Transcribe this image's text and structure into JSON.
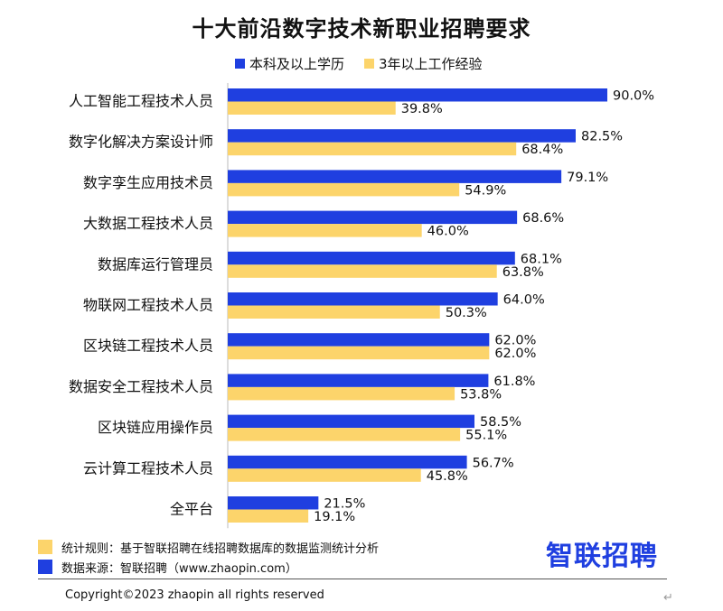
{
  "chart_data": {
    "type": "bar",
    "orientation": "horizontal",
    "title": "十大前沿数字技术新职业招聘要求",
    "categories": [
      "人工智能工程技术人员",
      "数字化解决方案设计师",
      "数字孪生应用技术员",
      "大数据工程技术人员",
      "数据库运行管理员",
      "物联网工程技术人员",
      "区块链工程技术人员",
      "数据安全工程技术人员",
      "区块链应用操作员",
      "云计算工程技术人员",
      "全平台"
    ],
    "series": [
      {
        "name": "本科及以上学历",
        "color": "#1f3fe0",
        "values": [
          90.0,
          82.5,
          79.1,
          68.6,
          68.1,
          64.0,
          62.0,
          61.8,
          58.5,
          56.7,
          21.5
        ],
        "value_labels": [
          "90.0%",
          "82.5%",
          "79.1%",
          "68.6%",
          "68.1%",
          "64.0%",
          "62.0%",
          "61.8%",
          "58.5%",
          "56.7%",
          "21.5%"
        ]
      },
      {
        "name": "3年以上工作经验",
        "color": "#fcd46b",
        "values": [
          39.8,
          68.4,
          54.9,
          46.0,
          63.8,
          50.3,
          62.0,
          53.8,
          55.1,
          45.8,
          19.1
        ],
        "value_labels": [
          "39.8%",
          "68.4%",
          "54.9%",
          "46.0%",
          "63.8%",
          "50.3%",
          "62.0%",
          "53.8%",
          "55.1%",
          "45.8%",
          "19.1%"
        ]
      }
    ],
    "xlim": [
      0,
      100
    ],
    "grid": false,
    "legend_position": "top"
  },
  "notes": {
    "rule": "统计规则：基于智联招聘在线招聘数据库的数据监测统计分析",
    "source": "数据来源：智联招聘（www.zhaopin.com）"
  },
  "brand": "智联招聘",
  "copyright": "Copyright©2023 zhaopin all rights reserved",
  "return_glyph": "↵",
  "colors": {
    "blue": "#1f3fe0",
    "yellow": "#fcd46b"
  }
}
